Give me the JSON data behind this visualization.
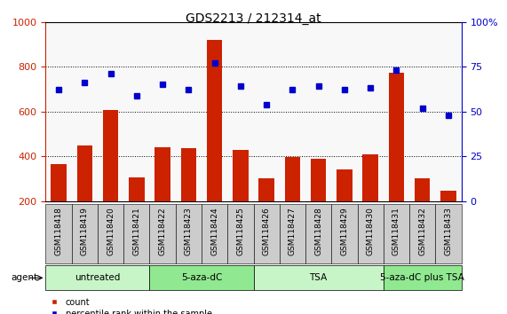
{
  "title": "GDS2213 / 212314_at",
  "categories": [
    "GSM118418",
    "GSM118419",
    "GSM118420",
    "GSM118421",
    "GSM118422",
    "GSM118423",
    "GSM118424",
    "GSM118425",
    "GSM118426",
    "GSM118427",
    "GSM118428",
    "GSM118429",
    "GSM118430",
    "GSM118431",
    "GSM118432",
    "GSM118433"
  ],
  "counts": [
    365,
    450,
    605,
    305,
    440,
    435,
    920,
    430,
    300,
    395,
    390,
    340,
    410,
    775,
    300,
    245
  ],
  "percentiles": [
    62,
    66,
    71,
    59,
    65,
    62,
    77,
    64,
    54,
    62,
    64,
    62,
    63,
    73,
    52,
    48
  ],
  "groups": [
    {
      "label": "untreated",
      "start": 0,
      "end": 3,
      "color": "#c8f5c8"
    },
    {
      "label": "5-aza-dC",
      "start": 4,
      "end": 7,
      "color": "#90e890"
    },
    {
      "label": "TSA",
      "start": 8,
      "end": 12,
      "color": "#c8f5c8"
    },
    {
      "label": "5-aza-dC plus TSA",
      "start": 13,
      "end": 15,
      "color": "#90e890"
    }
  ],
  "bar_color": "#cc2200",
  "dot_color": "#0000cc",
  "left_ylim": [
    200,
    1000
  ],
  "left_yticks": [
    200,
    400,
    600,
    800,
    1000
  ],
  "right_ylim": [
    0,
    100
  ],
  "right_yticks": [
    0,
    25,
    50,
    75,
    100
  ],
  "bg_color": "#ffffff",
  "plot_bg_color": "#f8f8f8",
  "tick_label_bg": "#cccccc",
  "agent_label": "agent",
  "legend_count_label": "count",
  "legend_pct_label": "percentile rank within the sample",
  "title_fontsize": 10,
  "tick_fontsize": 6.5,
  "group_label_fontsize": 7.5
}
